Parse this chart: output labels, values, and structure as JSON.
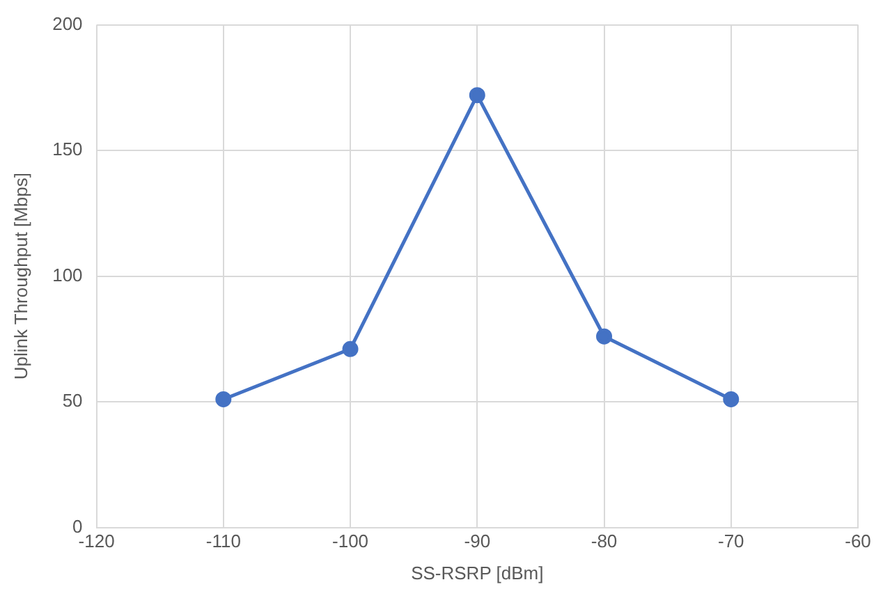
{
  "chart_data": {
    "type": "line",
    "xlabel": "SS-RSRP [dBm]",
    "ylabel": "Uplink Throughput [Mbps]",
    "x": [
      -110,
      -100,
      -90,
      -80,
      -70
    ],
    "series": [
      {
        "color": "#4472c4",
        "values": [
          51,
          71,
          172,
          76,
          51
        ]
      }
    ],
    "xlim": [
      -120,
      -60
    ],
    "xticks": [
      -120,
      -110,
      -100,
      -90,
      -80,
      -70,
      -60
    ],
    "ylim": [
      0,
      200
    ],
    "yticks": [
      0,
      50,
      100,
      150,
      200
    ],
    "grid": true,
    "legend": false,
    "marker": "circle",
    "line_style": "solid"
  }
}
